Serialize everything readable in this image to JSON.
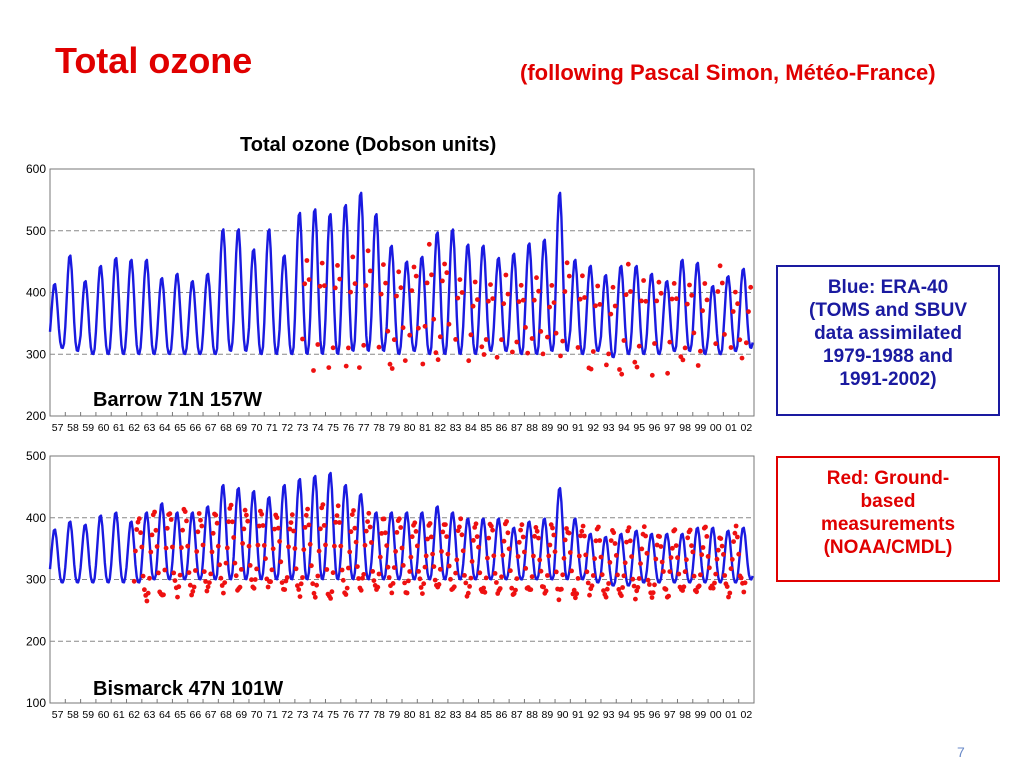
{
  "slide": {
    "title": "Total ozone",
    "subtitle": "(following Pascal Simon, Météo-France)",
    "page_number": "7"
  },
  "legend_blue": {
    "lines": [
      "Blue: ERA-40",
      "(TOMS and SBUV",
      "data assimilated",
      "1979-1988 and",
      "1991-2002)"
    ]
  },
  "legend_red": {
    "lines": [
      "Red: Ground-",
      "based",
      "measurements",
      "(NOAA/CMDL)"
    ]
  },
  "colors": {
    "title_red": "#e00000",
    "line_blue": "#1a1ae0",
    "dot_red": "#ee1111",
    "box_blue": "#1a1aa0"
  },
  "chart_data": [
    {
      "type": "line",
      "title": "Total ozone (Dobson units)",
      "station_label": "Barrow  71N 157W",
      "x_tick_labels": [
        "57",
        "58",
        "59",
        "60",
        "61",
        "62",
        "63",
        "64",
        "65",
        "66",
        "67",
        "68",
        "69",
        "70",
        "71",
        "72",
        "73",
        "74",
        "75",
        "76",
        "77",
        "78",
        "79",
        "80",
        "81",
        "82",
        "83",
        "84",
        "85",
        "86",
        "87",
        "88",
        "89",
        "90",
        "91",
        "92",
        "93",
        "94",
        "95",
        "96",
        "97",
        "98",
        "99",
        "00",
        "01",
        "02"
      ],
      "y_ticks": [
        200,
        300,
        400,
        500,
        600
      ],
      "ylim": [
        200,
        600
      ],
      "xlim": [
        1957.0,
        2003.0
      ],
      "grid": "dashed horizontal at y ticks",
      "series": [
        {
          "style": "line",
          "color": "#1a1ae0",
          "annual_max": [
            415,
            462,
            420,
            445,
            458,
            455,
            455,
            425,
            432,
            420,
            432,
            505,
            505,
            472,
            505,
            462,
            532,
            538,
            530,
            545,
            565,
            530,
            478,
            452,
            460,
            500,
            505,
            480,
            478,
            458,
            465,
            482,
            488,
            565,
            455,
            445,
            430,
            445,
            445,
            432,
            420,
            455,
            450,
            412,
            428,
            440
          ],
          "annual_min": [
            310,
            305,
            300,
            300,
            300,
            300,
            300,
            300,
            300,
            300,
            300,
            305,
            305,
            300,
            300,
            300,
            300,
            300,
            300,
            305,
            305,
            305,
            300,
            305,
            300,
            300,
            300,
            300,
            305,
            305,
            300,
            300,
            305,
            305,
            300,
            305,
            295,
            300,
            300,
            300,
            305,
            305,
            300,
            300,
            305,
            310
          ]
        },
        {
          "style": "points",
          "color": "#ee1111",
          "start_year": 1973.5,
          "annual_max": [
            460,
            450,
            450,
            460,
            470,
            440,
            440,
            450,
            470,
            455,
            430,
            420,
            410,
            420,
            410,
            420,
            410,
            450,
            420,
            410,
            410,
            440,
            420,
            420,
            420,
            420,
            410,
            440,
            410,
            410
          ],
          "annual_min": [
            270,
            280,
            275,
            270,
            265,
            275,
            290,
            290,
            295,
            295,
            295,
            300,
            300,
            300,
            300,
            295,
            290,
            290,
            280,
            275,
            275,
            285,
            270,
            275,
            285,
            280,
            280,
            280,
            285,
            290
          ]
        }
      ]
    },
    {
      "type": "line",
      "station_label": "Bismarck  47N 101W",
      "x_tick_labels": [
        "57",
        "58",
        "59",
        "60",
        "61",
        "62",
        "63",
        "64",
        "65",
        "66",
        "67",
        "68",
        "69",
        "70",
        "71",
        "72",
        "73",
        "74",
        "75",
        "76",
        "77",
        "78",
        "79",
        "80",
        "81",
        "82",
        "83",
        "84",
        "85",
        "86",
        "87",
        "88",
        "89",
        "90",
        "91",
        "92",
        "93",
        "94",
        "95",
        "96",
        "97",
        "98",
        "99",
        "00",
        "01",
        "02"
      ],
      "y_ticks": [
        100,
        200,
        300,
        400,
        500
      ],
      "ylim": [
        100,
        500
      ],
      "xlim": [
        1957.0,
        2003.0
      ],
      "grid": "dashed horizontal at y ticks",
      "series": [
        {
          "style": "line",
          "color": "#1a1ae0",
          "annual_max": [
            382,
            395,
            390,
            405,
            410,
            395,
            410,
            425,
            410,
            410,
            420,
            455,
            450,
            445,
            435,
            455,
            465,
            470,
            475,
            455,
            440,
            410,
            410,
            410,
            410,
            420,
            410,
            400,
            400,
            400,
            385,
            395,
            400,
            450,
            400,
            375,
            370,
            375,
            380,
            375,
            375,
            375,
            385,
            385,
            380,
            385
          ],
          "annual_min": [
            295,
            295,
            295,
            295,
            295,
            295,
            300,
            300,
            300,
            300,
            300,
            300,
            300,
            300,
            300,
            300,
            300,
            300,
            300,
            300,
            300,
            300,
            300,
            300,
            300,
            300,
            300,
            300,
            300,
            300,
            300,
            300,
            300,
            300,
            300,
            295,
            290,
            290,
            295,
            295,
            295,
            295,
            295,
            295,
            295,
            300
          ]
        },
        {
          "style": "points",
          "color": "#ee1111",
          "start_year": 1962.5,
          "annual_max": [
            405,
            405,
            410,
            410,
            405,
            405,
            420,
            415,
            410,
            405,
            405,
            410,
            420,
            415,
            405,
            405,
            395,
            395,
            395,
            395,
            395,
            395,
            390,
            390,
            390,
            390,
            385,
            385,
            385,
            385,
            380,
            380,
            380,
            380,
            375,
            380,
            380,
            380,
            375,
            380
          ],
          "annual_min": [
            270,
            275,
            280,
            280,
            285,
            285,
            285,
            285,
            290,
            290,
            280,
            275,
            270,
            280,
            285,
            285,
            285,
            285,
            285,
            285,
            285,
            280,
            280,
            280,
            280,
            280,
            280,
            275,
            275,
            280,
            275,
            275,
            275,
            275,
            275,
            280,
            280,
            280,
            280,
            285
          ]
        }
      ]
    }
  ]
}
